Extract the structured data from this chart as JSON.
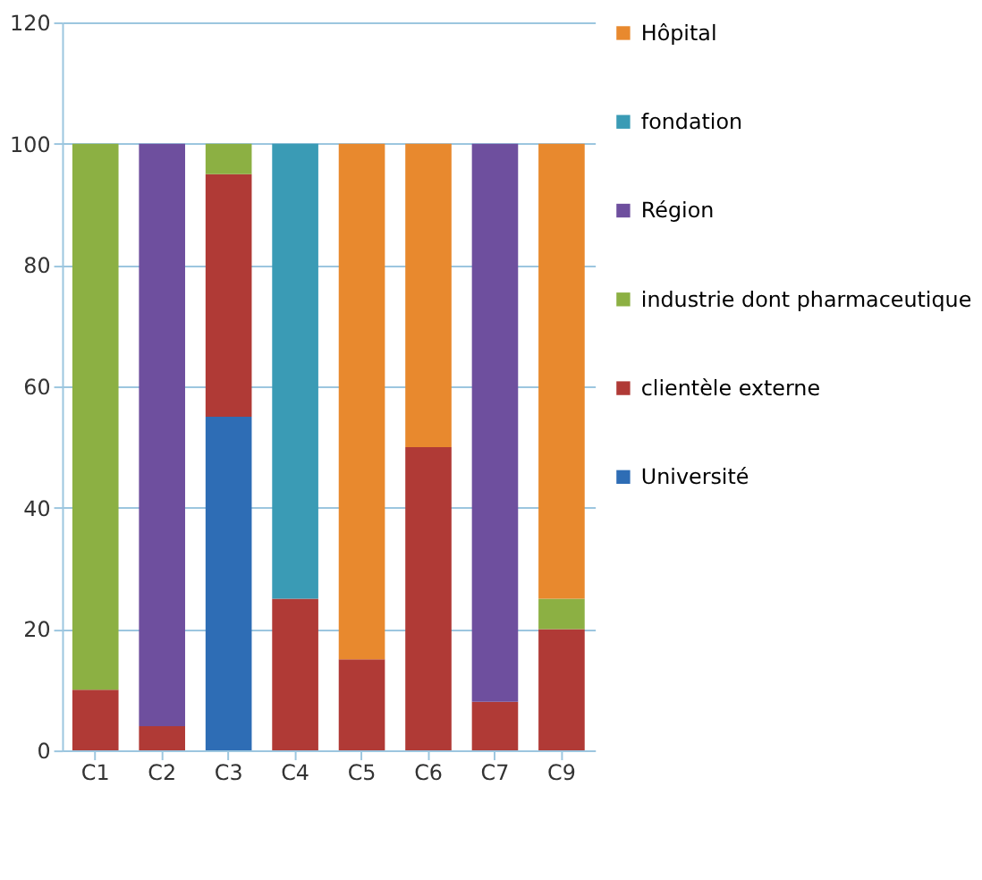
{
  "chart_data": {
    "type": "bar",
    "stacked": true,
    "categories": [
      "C1",
      "C2",
      "C3",
      "C4",
      "C5",
      "C6",
      "C7",
      "C9"
    ],
    "series": [
      {
        "name": "Université",
        "color": "#2e6db5",
        "values": [
          0,
          0,
          55,
          0,
          0,
          0,
          0,
          0
        ]
      },
      {
        "name": "clientèle externe",
        "color": "#b03a36",
        "values": [
          10,
          4,
          40,
          25,
          15,
          50,
          8,
          20
        ]
      },
      {
        "name": "industrie dont pharmaceutique",
        "color": "#8cb043",
        "values": [
          90,
          0,
          5,
          0,
          0,
          0,
          0,
          5
        ]
      },
      {
        "name": "Région",
        "color": "#6e4f9e",
        "values": [
          0,
          96,
          0,
          0,
          0,
          0,
          92,
          0
        ]
      },
      {
        "name": "fondation",
        "color": "#3a9bb5",
        "values": [
          0,
          0,
          0,
          75,
          0,
          0,
          0,
          0
        ]
      },
      {
        "name": "Hôpital",
        "color": "#e8892e",
        "values": [
          0,
          0,
          0,
          0,
          85,
          50,
          0,
          75
        ]
      }
    ],
    "ylim": [
      0,
      120
    ],
    "yticks": [
      0,
      20,
      40,
      60,
      80,
      100,
      120
    ],
    "grid": "y",
    "legend": "right"
  }
}
